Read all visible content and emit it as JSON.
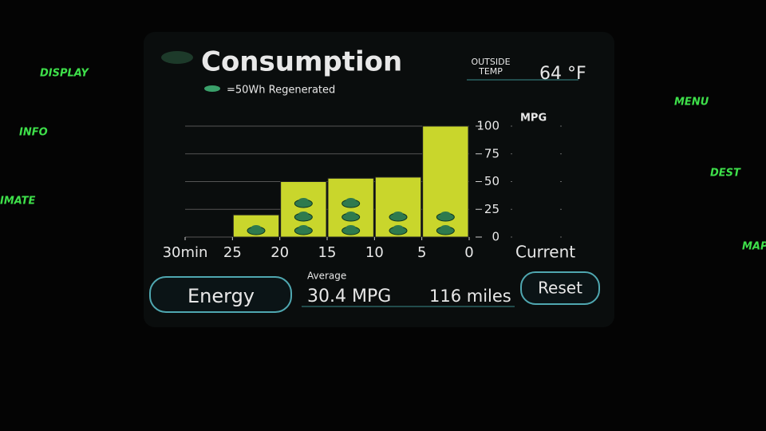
{
  "header": {
    "title": "Consumption",
    "legend": "=50Wh Regenerated",
    "temp_label": [
      "OUTSIDE",
      "TEMP"
    ],
    "temp_value": "64 °F"
  },
  "side_menu": {
    "left": [
      "DISPLAY",
      "INFO",
      "IMATE"
    ],
    "right": [
      "MENU",
      "DEST",
      "MAP"
    ]
  },
  "chart_data": {
    "type": "histogram",
    "bins": [
      25,
      20,
      15,
      10,
      5,
      0
    ],
    "values": [
      20,
      50,
      53,
      54,
      100
    ],
    "regen_icons": [
      1,
      3,
      3,
      2,
      2
    ],
    "color": "#c9d62c",
    "xlim": [
      30,
      0
    ],
    "xticks": [
      {
        "value": 30,
        "label": "30min"
      },
      25,
      20,
      15,
      10,
      5,
      0
    ],
    "x_end_label": "Current",
    "ylim": [
      0,
      100
    ],
    "yticks": [
      0,
      25,
      50,
      75,
      100
    ],
    "y_label": "MPG",
    "grid": true
  },
  "footer": {
    "mode_button": "Energy",
    "average_label": "Average",
    "average": "30.4 MPG",
    "distance": "116 miles",
    "reset_button": "Reset"
  }
}
